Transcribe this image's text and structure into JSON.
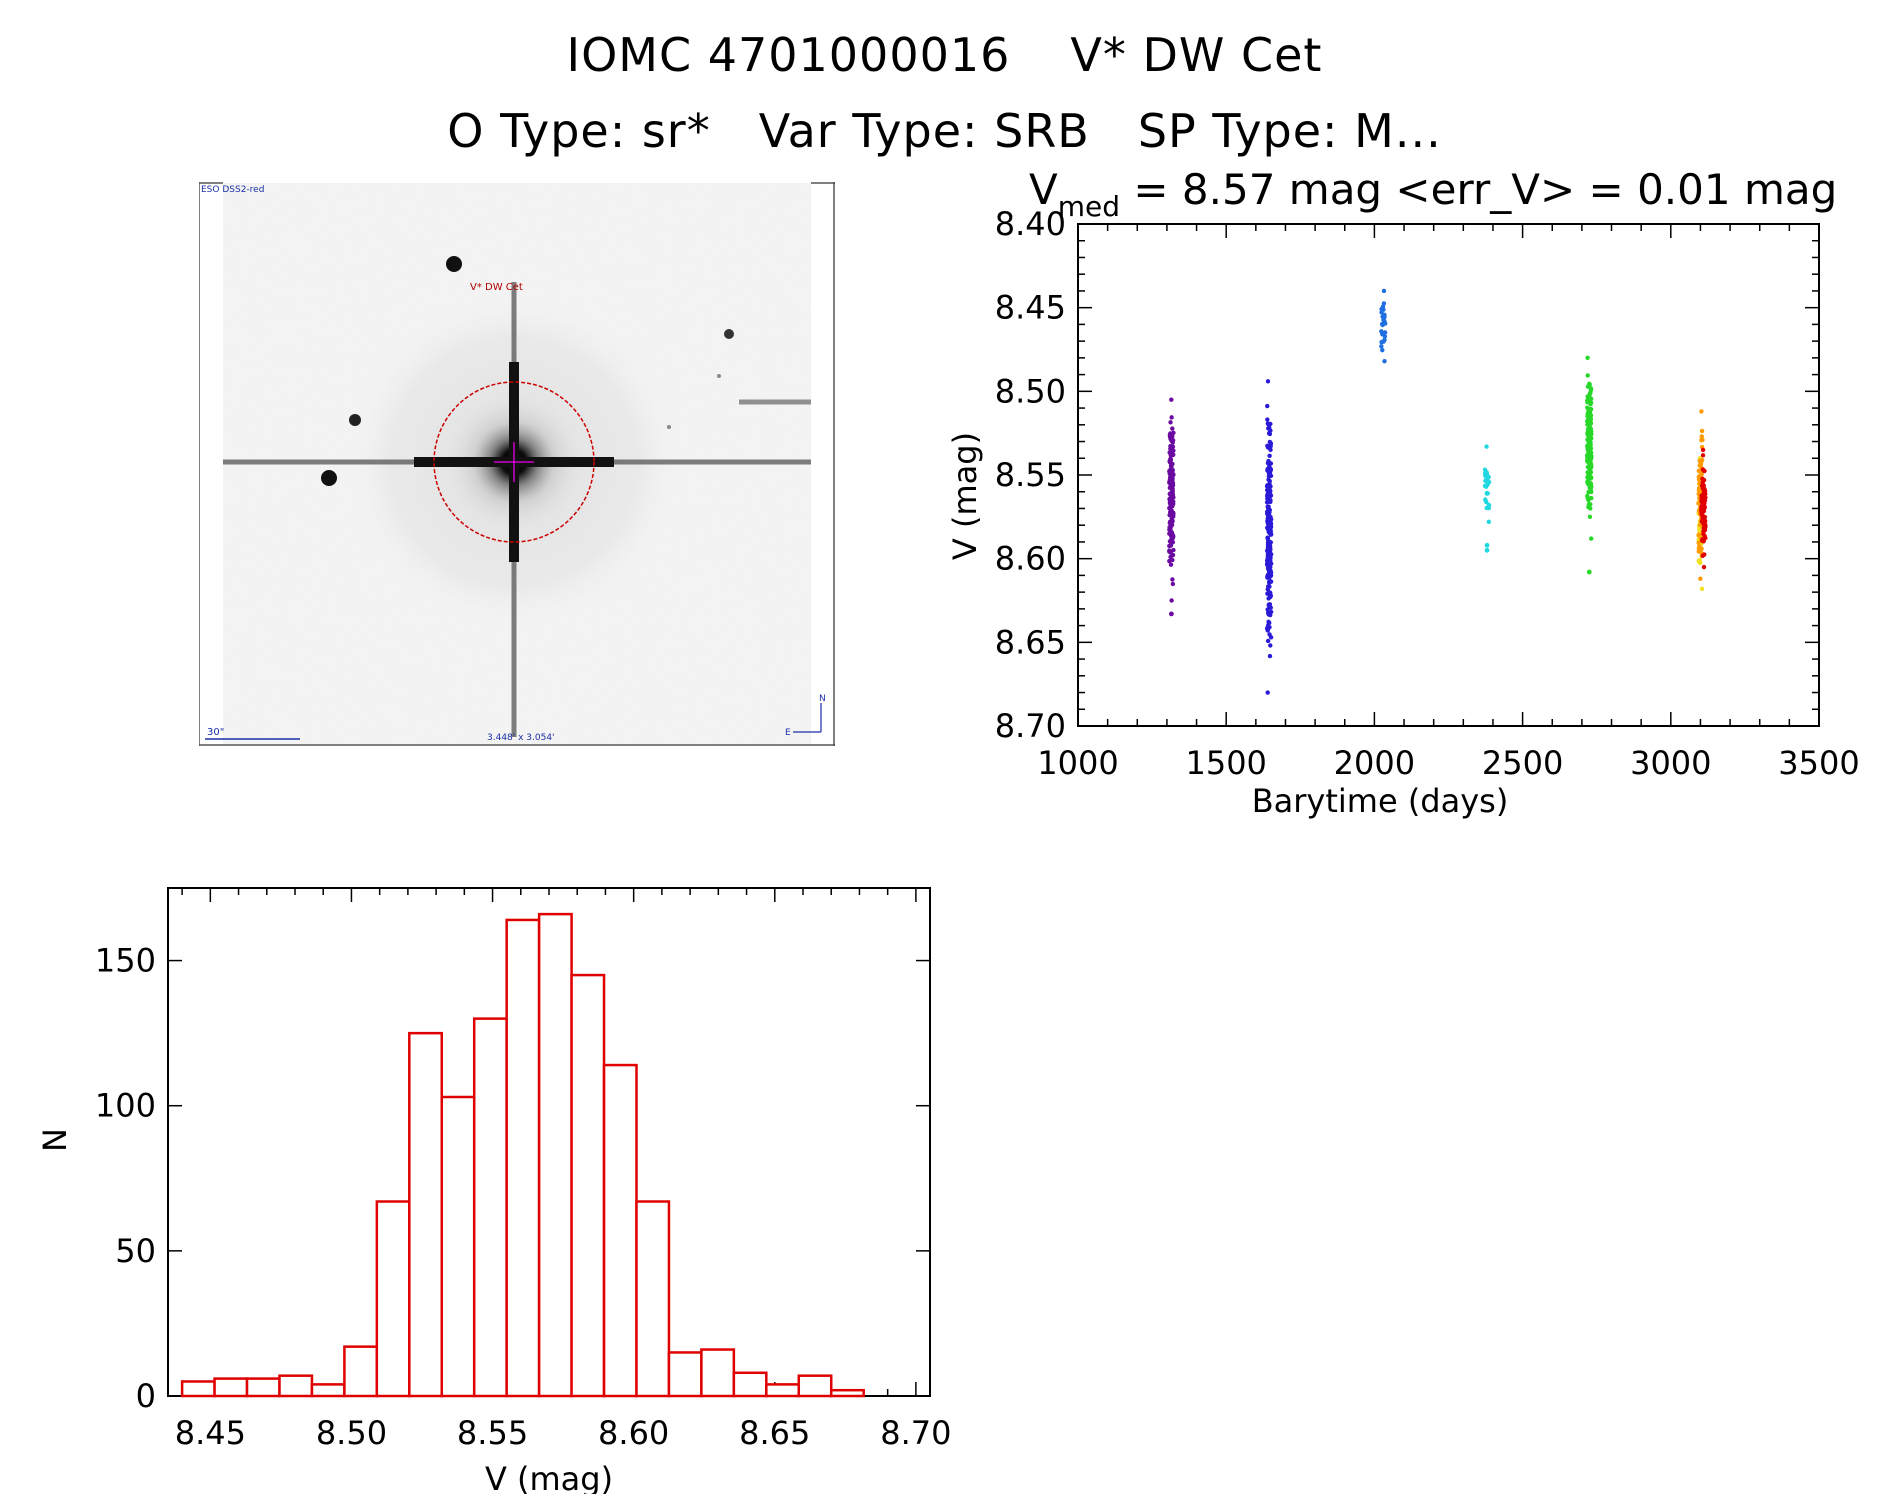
{
  "header": {
    "id_prefix": "IOMC 4701000016",
    "star_name": "V* DW Cet",
    "otype": "O Type: sr*",
    "vartype": "Var Type: SRB",
    "sptype": "SP Type: M..."
  },
  "finder": {
    "survey_label": "ESO DSS2-red",
    "target_label": "V* DW Cet",
    "scale_label": "30\"",
    "fov_label": "3.448' x 3.054'",
    "north_label": "N",
    "east_label": "E",
    "colors": {
      "circle": "#cc0000",
      "crosshair": "#cc00cc",
      "labels_blue": "#1a2fa8",
      "label_red": "#b00000"
    }
  },
  "chart_data": [
    {
      "type": "scatter",
      "title_v": "V",
      "title_sub": "med",
      "title_rest": " = 8.57 mag <err_V> = 0.01 mag",
      "xlabel": "Barytime (days)",
      "ylabel": "V (mag)",
      "xlim": [
        1000,
        3500
      ],
      "ylim": [
        8.7,
        8.4
      ],
      "y_inverted": true,
      "xticks": [
        "1000",
        "1500",
        "2000",
        "2500",
        "3000",
        "3500"
      ],
      "yticks": [
        "8.40",
        "8.45",
        "8.50",
        "8.55",
        "8.60",
        "8.65",
        "8.70"
      ],
      "series": [
        {
          "color": "#6a0aa0",
          "x": 1315,
          "ymin": 8.505,
          "ymax": 8.625,
          "outliers": [
            8.633
          ],
          "n": 160
        },
        {
          "color": "#2a1ad8",
          "x": 1645,
          "ymin": 8.494,
          "ymax": 8.68,
          "outliers": [],
          "n": 200
        },
        {
          "color": "#1f6fe0",
          "x": 2030,
          "ymin": 8.44,
          "ymax": 8.482,
          "outliers": [],
          "n": 30
        },
        {
          "color": "#22d8e0",
          "x": 2380,
          "ymin": 8.533,
          "ymax": 8.578,
          "outliers": [
            8.592,
            8.595
          ],
          "n": 30
        },
        {
          "color": "#28d828",
          "x": 2725,
          "ymin": 8.48,
          "ymax": 8.588,
          "outliers": [
            8.608
          ],
          "n": 200
        },
        {
          "color": "#f0e020",
          "x": 3100,
          "ymin": 8.54,
          "ymax": 8.618,
          "outliers": [],
          "n": 40
        },
        {
          "color": "#ff9a00",
          "x": 3100,
          "ymin": 8.512,
          "ymax": 8.612,
          "outliers": [],
          "n": 60
        },
        {
          "color": "#e00000",
          "x": 3110,
          "ymin": 8.535,
          "ymax": 8.605,
          "outliers": [],
          "n": 90
        }
      ]
    },
    {
      "type": "bar",
      "xlabel": "V (mag)",
      "ylabel": "N",
      "xlim": [
        8.435,
        8.705
      ],
      "ylim": [
        0,
        175
      ],
      "xticks": [
        "8.45",
        "8.50",
        "8.55",
        "8.60",
        "8.65",
        "8.70"
      ],
      "yticks": [
        "0",
        "50",
        "100",
        "150"
      ],
      "bin_start": 8.44,
      "bin_width": 0.0115,
      "values": [
        5,
        6,
        6,
        7,
        4,
        17,
        67,
        125,
        103,
        130,
        164,
        166,
        145,
        114,
        67,
        15,
        16,
        8,
        4,
        7,
        2
      ],
      "color": "#e00000"
    }
  ]
}
